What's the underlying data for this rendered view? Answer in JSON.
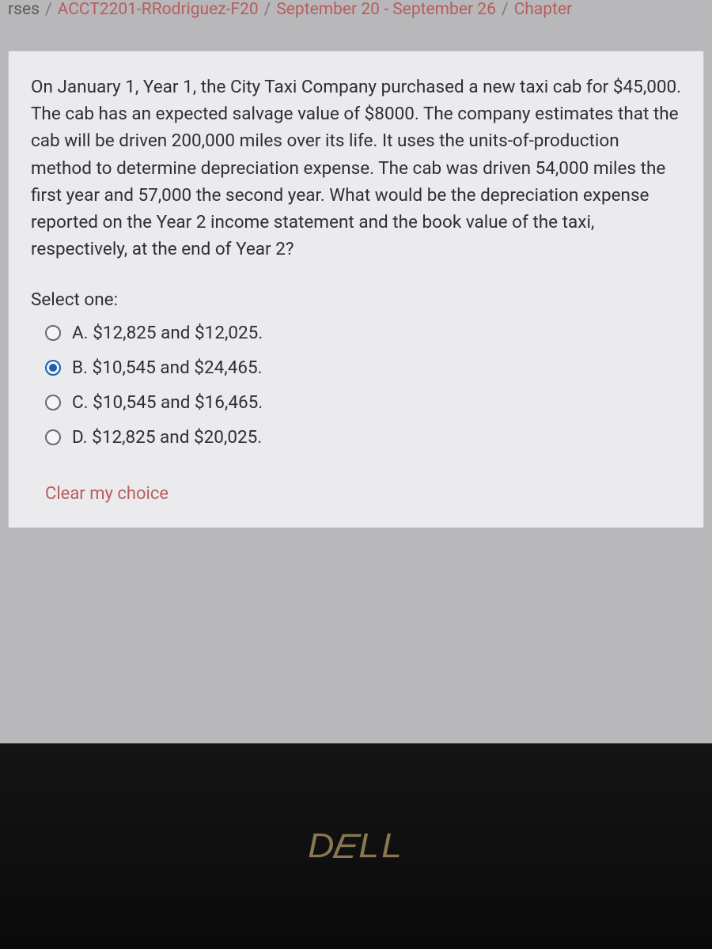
{
  "breadcrumb": {
    "item0": "rses",
    "item1": "ACCT2201-RRodriguez-F20",
    "item2": "September 20 - September 26",
    "item3": "Chapter",
    "separator": "/"
  },
  "question": {
    "text": "On January 1, Year 1, the City Taxi Company purchased a new taxi cab for $45,000. The cab has an expected salvage value of $8000. The company estimates that the cab will be driven 200,000 miles over its life. It uses the units-of-production method to determine depreciation expense. The cab was driven 54,000 miles the first year and 57,000 the second year. What would be the depreciation expense reported on the Year 2 income statement and the book value of the taxi, respectively, at the end of Year 2?",
    "prompt": "Select one:",
    "options": [
      {
        "letter": "A.",
        "text": "$12,825 and $12,025.",
        "selected": false
      },
      {
        "letter": "B.",
        "text": "$10,545 and $24,465.",
        "selected": true
      },
      {
        "letter": "C.",
        "text": "$10,545 and $16,465.",
        "selected": false
      },
      {
        "letter": "D.",
        "text": "$12,825 and $20,025.",
        "selected": false
      }
    ],
    "clear_label": "Clear my choice"
  },
  "logo": {
    "pre": "D",
    "e": "E",
    "post": "LL"
  },
  "colors": {
    "link": "#b85c5c",
    "card_bg": "#ebebed",
    "page_bg": "#b8b8bb",
    "text": "#2f2f33",
    "radio_selected": "#1a5fb4",
    "bezel": "#0a0a0a",
    "logo": "#8a7650"
  }
}
